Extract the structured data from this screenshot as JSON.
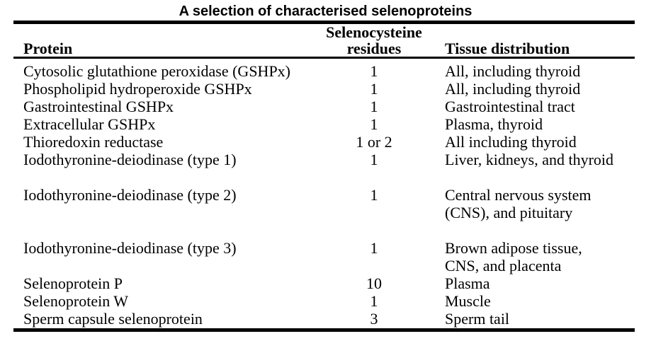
{
  "title": "A selection of characterised selenoproteins",
  "colors": {
    "text": "#000000",
    "background": "#ffffff",
    "rule": "#000000"
  },
  "table": {
    "headers": {
      "protein": "Protein",
      "residues_line1": "Selenocysteine",
      "residues_line2": "residues",
      "tissue": "Tissue distribution"
    },
    "rows": [
      {
        "protein": "Cytosolic glutathione peroxidase (GSHPx)",
        "residues": "1",
        "tissue_lines": [
          "All, including thyroid"
        ],
        "spacer_before": false
      },
      {
        "protein": "Phospholipid hydroperoxide GSHPx",
        "residues": "1",
        "tissue_lines": [
          "All, including thyroid"
        ],
        "spacer_before": false
      },
      {
        "protein": "Gastrointestinal GSHPx",
        "residues": "1",
        "tissue_lines": [
          "Gastrointestinal tract"
        ],
        "spacer_before": false
      },
      {
        "protein": "Extracellular GSHPx",
        "residues": "1",
        "tissue_lines": [
          "Plasma, thyroid"
        ],
        "spacer_before": false
      },
      {
        "protein": "Thioredoxin reductase",
        "residues": "1 or 2",
        "tissue_lines": [
          "All including thyroid"
        ],
        "spacer_before": false
      },
      {
        "protein": "Iodothyronine-deiodinase (type 1)",
        "residues": "1",
        "tissue_lines": [
          "Liver, kidneys, and thyroid"
        ],
        "spacer_before": false
      },
      {
        "protein": "Iodothyronine-deiodinase (type 2)",
        "residues": "1",
        "tissue_lines": [
          "Central nervous system",
          "(CNS), and pituitary"
        ],
        "spacer_before": true
      },
      {
        "protein": "Iodothyronine-deiodinase (type 3)",
        "residues": "1",
        "tissue_lines": [
          "Brown adipose tissue,",
          "CNS, and placenta"
        ],
        "spacer_before": true
      },
      {
        "protein": "Selenoprotein P",
        "residues": "10",
        "tissue_lines": [
          "Plasma"
        ],
        "spacer_before": false
      },
      {
        "protein": "Selenoprotein W",
        "residues": "1",
        "tissue_lines": [
          "Muscle"
        ],
        "spacer_before": false
      },
      {
        "protein": "Sperm capsule selenoprotein",
        "residues": "3",
        "tissue_lines": [
          "Sperm tail"
        ],
        "spacer_before": false
      }
    ]
  }
}
